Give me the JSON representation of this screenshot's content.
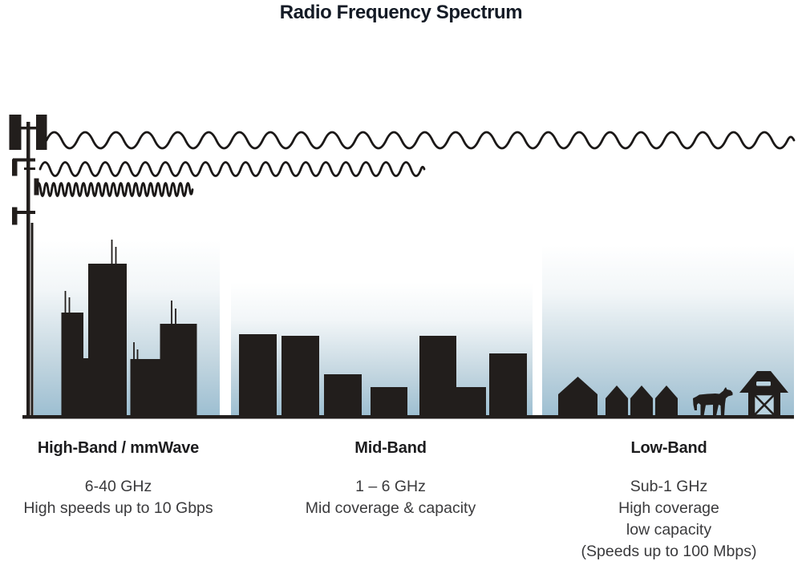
{
  "title": "Radio Frequency Spectrum",
  "bands": [
    {
      "name": "High-Band / mmWave",
      "lines": [
        "6-40 GHz",
        "High speeds up to 10 Gbps"
      ],
      "illustration": "dense-city-skyline-with-antennas",
      "wave": {
        "relative_wavelength": "shortest",
        "relative_reach": "shortest"
      }
    },
    {
      "name": "Mid-Band",
      "lines": [
        "1 – 6 GHz",
        "Mid coverage & capacity"
      ],
      "illustration": "town-buildings",
      "wave": {
        "relative_wavelength": "medium",
        "relative_reach": "medium"
      }
    },
    {
      "name": "Low-Band",
      "lines": [
        "Sub-1 GHz",
        "High coverage",
        "low capacity",
        "(Speeds up to 100 Mbps)"
      ],
      "illustration": "rural-houses-cow-and-barn",
      "wave": {
        "relative_wavelength": "longest",
        "relative_reach": "longest"
      }
    }
  ],
  "icons": [
    "cell-tower-icon",
    "radio-wave-icon",
    "skyscraper-icon",
    "building-icon",
    "house-icon",
    "cow-icon",
    "barn-icon"
  ],
  "colors": {
    "ink": "#221e1c",
    "title_text": "#141b26",
    "body_text": "#3a3a3c",
    "sky_top": "#ffffff",
    "sky_bottom": "#9cbed1",
    "barn_door_accent": "#b9d2df"
  }
}
